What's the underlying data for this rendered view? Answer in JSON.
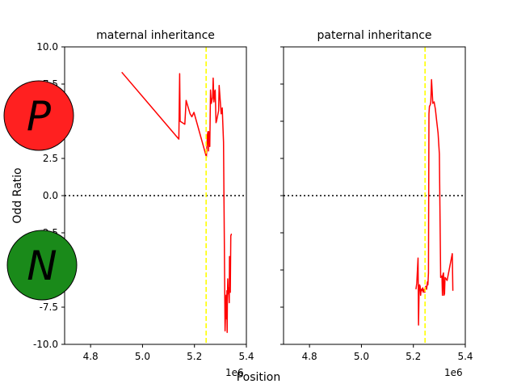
{
  "figure": {
    "ylabel": "Odd Ratio",
    "xlabel": "Position",
    "markers": [
      {
        "letter": "P",
        "color": "#ff2020"
      },
      {
        "letter": "N",
        "color": "#1a8a1a"
      }
    ]
  },
  "chart_data": [
    {
      "type": "line",
      "title": "maternal inheritance",
      "xlim": [
        4700000,
        5400000
      ],
      "ylim": [
        -10,
        10
      ],
      "x_ticks": [
        4.8,
        5.0,
        5.2,
        5.4
      ],
      "y_ticks": [
        10.0,
        7.5,
        5.0,
        2.5,
        0.0,
        -2.5,
        -5.0,
        -7.5,
        -10.0
      ],
      "x_offset_label": "1e6",
      "vline_x": 5245000,
      "hline_y": 0,
      "line_color": "#ff0000",
      "vline_color": "#ffff00",
      "series": [
        {
          "x": [
            4920000,
            5140000,
            5143000,
            5145000,
            5163000,
            5168000,
            5183000,
            5190000,
            5198000,
            5246000,
            5250000,
            5252000,
            5254000,
            5255000,
            5259000,
            5262000,
            5265000,
            5267000,
            5270000,
            5272000,
            5275000,
            5276000,
            5278000,
            5280000,
            5283000,
            5285000,
            5293000,
            5295000,
            5303000,
            5307000,
            5312000,
            5318000,
            5322000,
            5323000,
            5324000,
            5325000,
            5326000,
            5327000,
            5328000,
            5330000,
            5332000,
            5334000,
            5335000,
            5336000,
            5338000,
            5340000,
            5342000,
            5344000
          ],
          "y": [
            8.3,
            3.8,
            8.2,
            5.0,
            4.8,
            6.4,
            5.5,
            5.3,
            5.6,
            2.6,
            4.1,
            4.3,
            3.0,
            4.3,
            3.3,
            7.1,
            6.2,
            6.4,
            6.6,
            7.9,
            6.3,
            6.5,
            7.0,
            7.1,
            4.9,
            5.0,
            5.7,
            7.4,
            5.5,
            5.9,
            3.6,
            -9.1,
            -6.7,
            -7.0,
            -8.3,
            -6.4,
            -9.2,
            -6.9,
            -5.6,
            -6.6,
            -6.2,
            -7.2,
            -4.1,
            -4.3,
            -6.5,
            -2.7,
            -2.6,
            -2.6
          ]
        }
      ]
    },
    {
      "type": "line",
      "title": "paternal inheritance",
      "xlim": [
        4700000,
        5400000
      ],
      "ylim": [
        -10,
        10
      ],
      "x_ticks": [
        4.8,
        5.0,
        5.2,
        5.4
      ],
      "x_offset_label": "1e6",
      "vline_x": 5245000,
      "hline_y": 0,
      "line_color": "#ff0000",
      "vline_color": "#ffff00",
      "series": [
        {
          "x": [
            5210000,
            5213000,
            5218000,
            5220000,
            5222000,
            5224000,
            5226000,
            5228000,
            5230000,
            5232000,
            5234000,
            5236000,
            5238000,
            5240000,
            5242000,
            5244000,
            5246000,
            5248000,
            5251000,
            5254000,
            5256000,
            5258000,
            5260000,
            5262000,
            5265000,
            5267000,
            5270000,
            5275000,
            5280000,
            5285000,
            5290000,
            5295000,
            5300000,
            5305000,
            5310000,
            5312000,
            5314000,
            5316000,
            5318000,
            5320000,
            5322000,
            5330000,
            5340000,
            5350000,
            5352000
          ],
          "y": [
            -6.3,
            -5.9,
            -4.2,
            -8.7,
            -6.4,
            -6.0,
            -6.1,
            -6.7,
            -6.3,
            -6.4,
            -6.3,
            -6.2,
            -6.5,
            -6.4,
            -6.3,
            -6.5,
            -6.2,
            -6.1,
            -6.3,
            -5.8,
            -6.0,
            -5.2,
            5.5,
            6.0,
            6.1,
            6.3,
            7.8,
            6.2,
            6.3,
            5.8,
            5.0,
            4.2,
            2.8,
            -5.5,
            -5.4,
            -6.7,
            -5.3,
            -5.2,
            -6.7,
            -6.6,
            -5.5,
            -5.7,
            -4.8,
            -3.9,
            -6.4
          ]
        }
      ]
    }
  ]
}
